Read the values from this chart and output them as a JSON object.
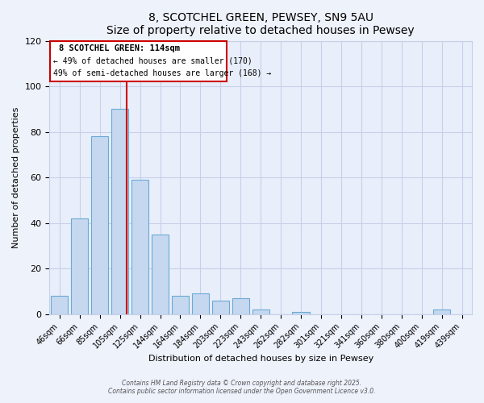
{
  "title": "8, SCOTCHEL GREEN, PEWSEY, SN9 5AU",
  "subtitle": "Size of property relative to detached houses in Pewsey",
  "xlabel": "Distribution of detached houses by size in Pewsey",
  "ylabel": "Number of detached properties",
  "bar_labels": [
    "46sqm",
    "66sqm",
    "85sqm",
    "105sqm",
    "125sqm",
    "144sqm",
    "164sqm",
    "184sqm",
    "203sqm",
    "223sqm",
    "243sqm",
    "262sqm",
    "282sqm",
    "301sqm",
    "321sqm",
    "341sqm",
    "360sqm",
    "380sqm",
    "400sqm",
    "419sqm",
    "439sqm"
  ],
  "bar_values": [
    8,
    42,
    78,
    90,
    59,
    35,
    8,
    9,
    6,
    7,
    2,
    0,
    1,
    0,
    0,
    0,
    0,
    0,
    0,
    2,
    0
  ],
  "bar_color": "#c5d8f0",
  "bar_edge_color": "#6aaad4",
  "vline_index": 3,
  "vline_color": "#cc0000",
  "annotation_line1": "8 SCOTCHEL GREEN: 114sqm",
  "annotation_line2": "← 49% of detached houses are smaller (170)",
  "annotation_line3": "49% of semi-detached houses are larger (168) →",
  "annotation_box_color": "#ffffff",
  "annotation_box_edge_color": "#cc0000",
  "ylim": [
    0,
    120
  ],
  "yticks": [
    0,
    20,
    40,
    60,
    80,
    100,
    120
  ],
  "footer1": "Contains HM Land Registry data © Crown copyright and database right 2025.",
  "footer2": "Contains public sector information licensed under the Open Government Licence v3.0.",
  "bg_color": "#eef2fb",
  "plot_bg_color": "#e8eefa",
  "grid_color": "#c8d0e8"
}
